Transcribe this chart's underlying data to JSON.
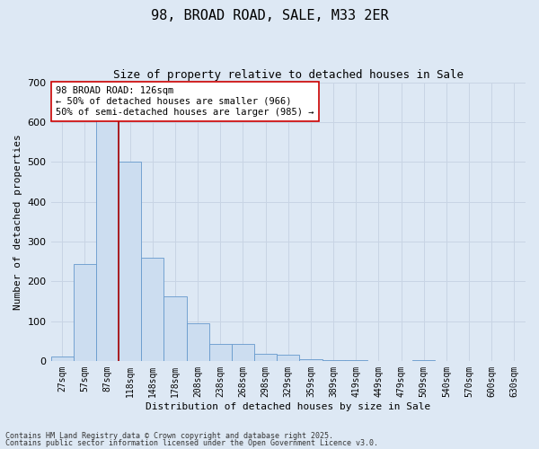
{
  "title1": "98, BROAD ROAD, SALE, M33 2ER",
  "title2": "Size of property relative to detached houses in Sale",
  "xlabel": "Distribution of detached houses by size in Sale",
  "ylabel": "Number of detached properties",
  "categories": [
    "27sqm",
    "57sqm",
    "87sqm",
    "118sqm",
    "148sqm",
    "178sqm",
    "208sqm",
    "238sqm",
    "268sqm",
    "298sqm",
    "329sqm",
    "359sqm",
    "389sqm",
    "419sqm",
    "449sqm",
    "479sqm",
    "509sqm",
    "540sqm",
    "570sqm",
    "600sqm",
    "630sqm"
  ],
  "values": [
    10,
    243,
    610,
    500,
    260,
    163,
    95,
    43,
    43,
    18,
    15,
    5,
    3,
    1,
    0,
    0,
    1,
    0,
    0,
    0,
    0
  ],
  "bar_color": "#ccddf0",
  "bar_edge_color": "#6699cc",
  "grid_color": "#c8d4e4",
  "background_color": "#dde8f4",
  "vline_color": "#aa0000",
  "annotation_text": "98 BROAD ROAD: 126sqm\n← 50% of detached houses are smaller (966)\n50% of semi-detached houses are larger (985) →",
  "annotation_box_color": "#ffffff",
  "annotation_box_edge": "#cc0000",
  "ylim": [
    0,
    700
  ],
  "yticks": [
    0,
    100,
    200,
    300,
    400,
    500,
    600,
    700
  ],
  "footer1": "Contains HM Land Registry data © Crown copyright and database right 2025.",
  "footer2": "Contains public sector information licensed under the Open Government Licence v3.0."
}
